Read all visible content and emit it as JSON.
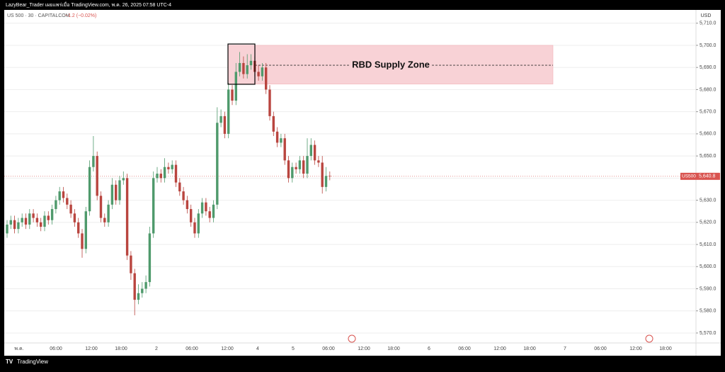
{
  "header": {
    "published": "LazyBear_Trader เผยแพร่เมื่อ TradingView.com, พ.ค. 26, 2025 07:58 UTC-4",
    "footer": "TradingView"
  },
  "chart_data": {
    "type": "candlestick",
    "symbol": "US 500 · 30 · CAPITALCOM",
    "change": "−1.2 (−0.02%)",
    "currency": "USD",
    "up_color": "#4f9a6c",
    "down_color": "#b9453f",
    "open": [
      5615,
      5619,
      5621,
      5617,
      5620,
      5622,
      5619,
      5624,
      5622,
      5620,
      5618,
      5623,
      5621,
      5626,
      5630,
      5634,
      5631,
      5628,
      5624,
      5620,
      5615,
      5608,
      5625,
      5645,
      5650,
      5632,
      5622,
      5620,
      5628,
      5637,
      5630,
      5639,
      5640,
      5605,
      5597,
      5585,
      5588,
      5590,
      5593,
      5615,
      5640,
      5642,
      5640,
      5645,
      5644,
      5646,
      5638,
      5634,
      5630,
      5626,
      5620,
      5615,
      5624,
      5629,
      5625,
      5622,
      5628,
      5665,
      5668,
      5660,
      5680,
      5675,
      5688,
      5692,
      5687,
      5691,
      5693,
      5688,
      5686,
      5690,
      5680,
      5668,
      5661,
      5656,
      5658,
      5648,
      5640,
      5645,
      5644,
      5648,
      5642,
      5650,
      5655,
      5648,
      5647,
      5636,
      5641
    ],
    "high": [
      5621,
      5623,
      5623,
      5622,
      5624,
      5624,
      5626,
      5626,
      5624,
      5622,
      5625,
      5625,
      5628,
      5632,
      5636,
      5636,
      5633,
      5630,
      5626,
      5622,
      5617,
      5627,
      5648,
      5659,
      5652,
      5634,
      5624,
      5630,
      5640,
      5639,
      5641,
      5643,
      5642,
      5607,
      5599,
      5592,
      5593,
      5596,
      5618,
      5643,
      5645,
      5644,
      5649,
      5647,
      5648,
      5648,
      5640,
      5636,
      5632,
      5628,
      5622,
      5626,
      5631,
      5631,
      5627,
      5630,
      5672,
      5671,
      5670,
      5683,
      5682,
      5692,
      5697,
      5695,
      5696,
      5696,
      5695,
      5691,
      5692,
      5692,
      5682,
      5670,
      5663,
      5660,
      5660,
      5650,
      5647,
      5647,
      5650,
      5650,
      5658,
      5658,
      5657,
      5650,
      5650,
      5645,
      5643
    ],
    "low": [
      5613,
      5617,
      5615,
      5615,
      5618,
      5617,
      5617,
      5620,
      5618,
      5616,
      5616,
      5619,
      5619,
      5624,
      5628,
      5629,
      5626,
      5622,
      5618,
      5613,
      5604,
      5606,
      5623,
      5643,
      5630,
      5620,
      5618,
      5618,
      5626,
      5628,
      5628,
      5637,
      5603,
      5594,
      5578,
      5583,
      5586,
      5588,
      5591,
      5613,
      5638,
      5638,
      5638,
      5642,
      5642,
      5636,
      5632,
      5628,
      5624,
      5618,
      5613,
      5613,
      5622,
      5623,
      5620,
      5620,
      5626,
      5663,
      5658,
      5658,
      5673,
      5673,
      5686,
      5685,
      5685,
      5689,
      5686,
      5684,
      5684,
      5678,
      5666,
      5659,
      5654,
      5654,
      5646,
      5638,
      5638,
      5642,
      5642,
      5640,
      5640,
      5648,
      5646,
      5645,
      5633,
      5634,
      5639
    ],
    "close": [
      5619,
      5621,
      5617,
      5620,
      5622,
      5619,
      5624,
      5622,
      5620,
      5618,
      5623,
      5621,
      5626,
      5630,
      5634,
      5631,
      5628,
      5624,
      5620,
      5615,
      5608,
      5625,
      5645,
      5650,
      5632,
      5622,
      5620,
      5628,
      5637,
      5630,
      5639,
      5640,
      5605,
      5597,
      5585,
      5588,
      5590,
      5593,
      5615,
      5640,
      5642,
      5640,
      5645,
      5644,
      5646,
      5638,
      5634,
      5630,
      5626,
      5620,
      5615,
      5624,
      5629,
      5625,
      5622,
      5628,
      5665,
      5668,
      5660,
      5680,
      5675,
      5688,
      5692,
      5687,
      5691,
      5693,
      5688,
      5686,
      5690,
      5680,
      5668,
      5661,
      5656,
      5658,
      5648,
      5640,
      5645,
      5644,
      5648,
      5642,
      5650,
      5655,
      5648,
      5647,
      5636,
      5641,
      5640.8
    ],
    "ylim": [
      5565.5,
      5716
    ],
    "yticks": [
      {
        "value": 5570,
        "label": "5,570.0"
      },
      {
        "value": 5580,
        "label": "5,580.0"
      },
      {
        "value": 5590,
        "label": "5,590.0"
      },
      {
        "value": 5600,
        "label": "5,600.0"
      },
      {
        "value": 5610,
        "label": "5,610.0"
      },
      {
        "value": 5620,
        "label": "5,620.0"
      },
      {
        "value": 5630,
        "label": "5,630.0"
      },
      {
        "value": 5640,
        "label": "5,640.0"
      },
      {
        "value": 5650,
        "label": "5,650.0"
      },
      {
        "value": 5660,
        "label": "5,660.0"
      },
      {
        "value": 5670,
        "label": "5,670.0"
      },
      {
        "value": 5680,
        "label": "5,680.0"
      },
      {
        "value": 5690,
        "label": "5,690.0"
      },
      {
        "value": 5700,
        "label": "5,700.0"
      },
      {
        "value": 5710,
        "label": "5,710.0"
      }
    ],
    "x_tick_labels": [
      "พ.ค.",
      "06:00",
      "12:00",
      "18:00",
      "2",
      "06:00",
      "12:00",
      "4",
      "5",
      "06:00",
      "12:00",
      "18:00",
      "6",
      "06:00",
      "12:00",
      "18:00",
      "7",
      "06:00",
      "12:00",
      "18:00"
    ],
    "grid": true,
    "zone": {
      "label": "RBD Supply Zone",
      "top": 5700,
      "bottom": 5682.5,
      "mid": 5691,
      "color": "#f8d2d6"
    },
    "box": {
      "top": 5700.6,
      "bottom": 5682.4
    },
    "last_price": {
      "name": "US500",
      "value": 5640.8,
      "label": "5,640.8",
      "color": "#d9534f"
    }
  }
}
